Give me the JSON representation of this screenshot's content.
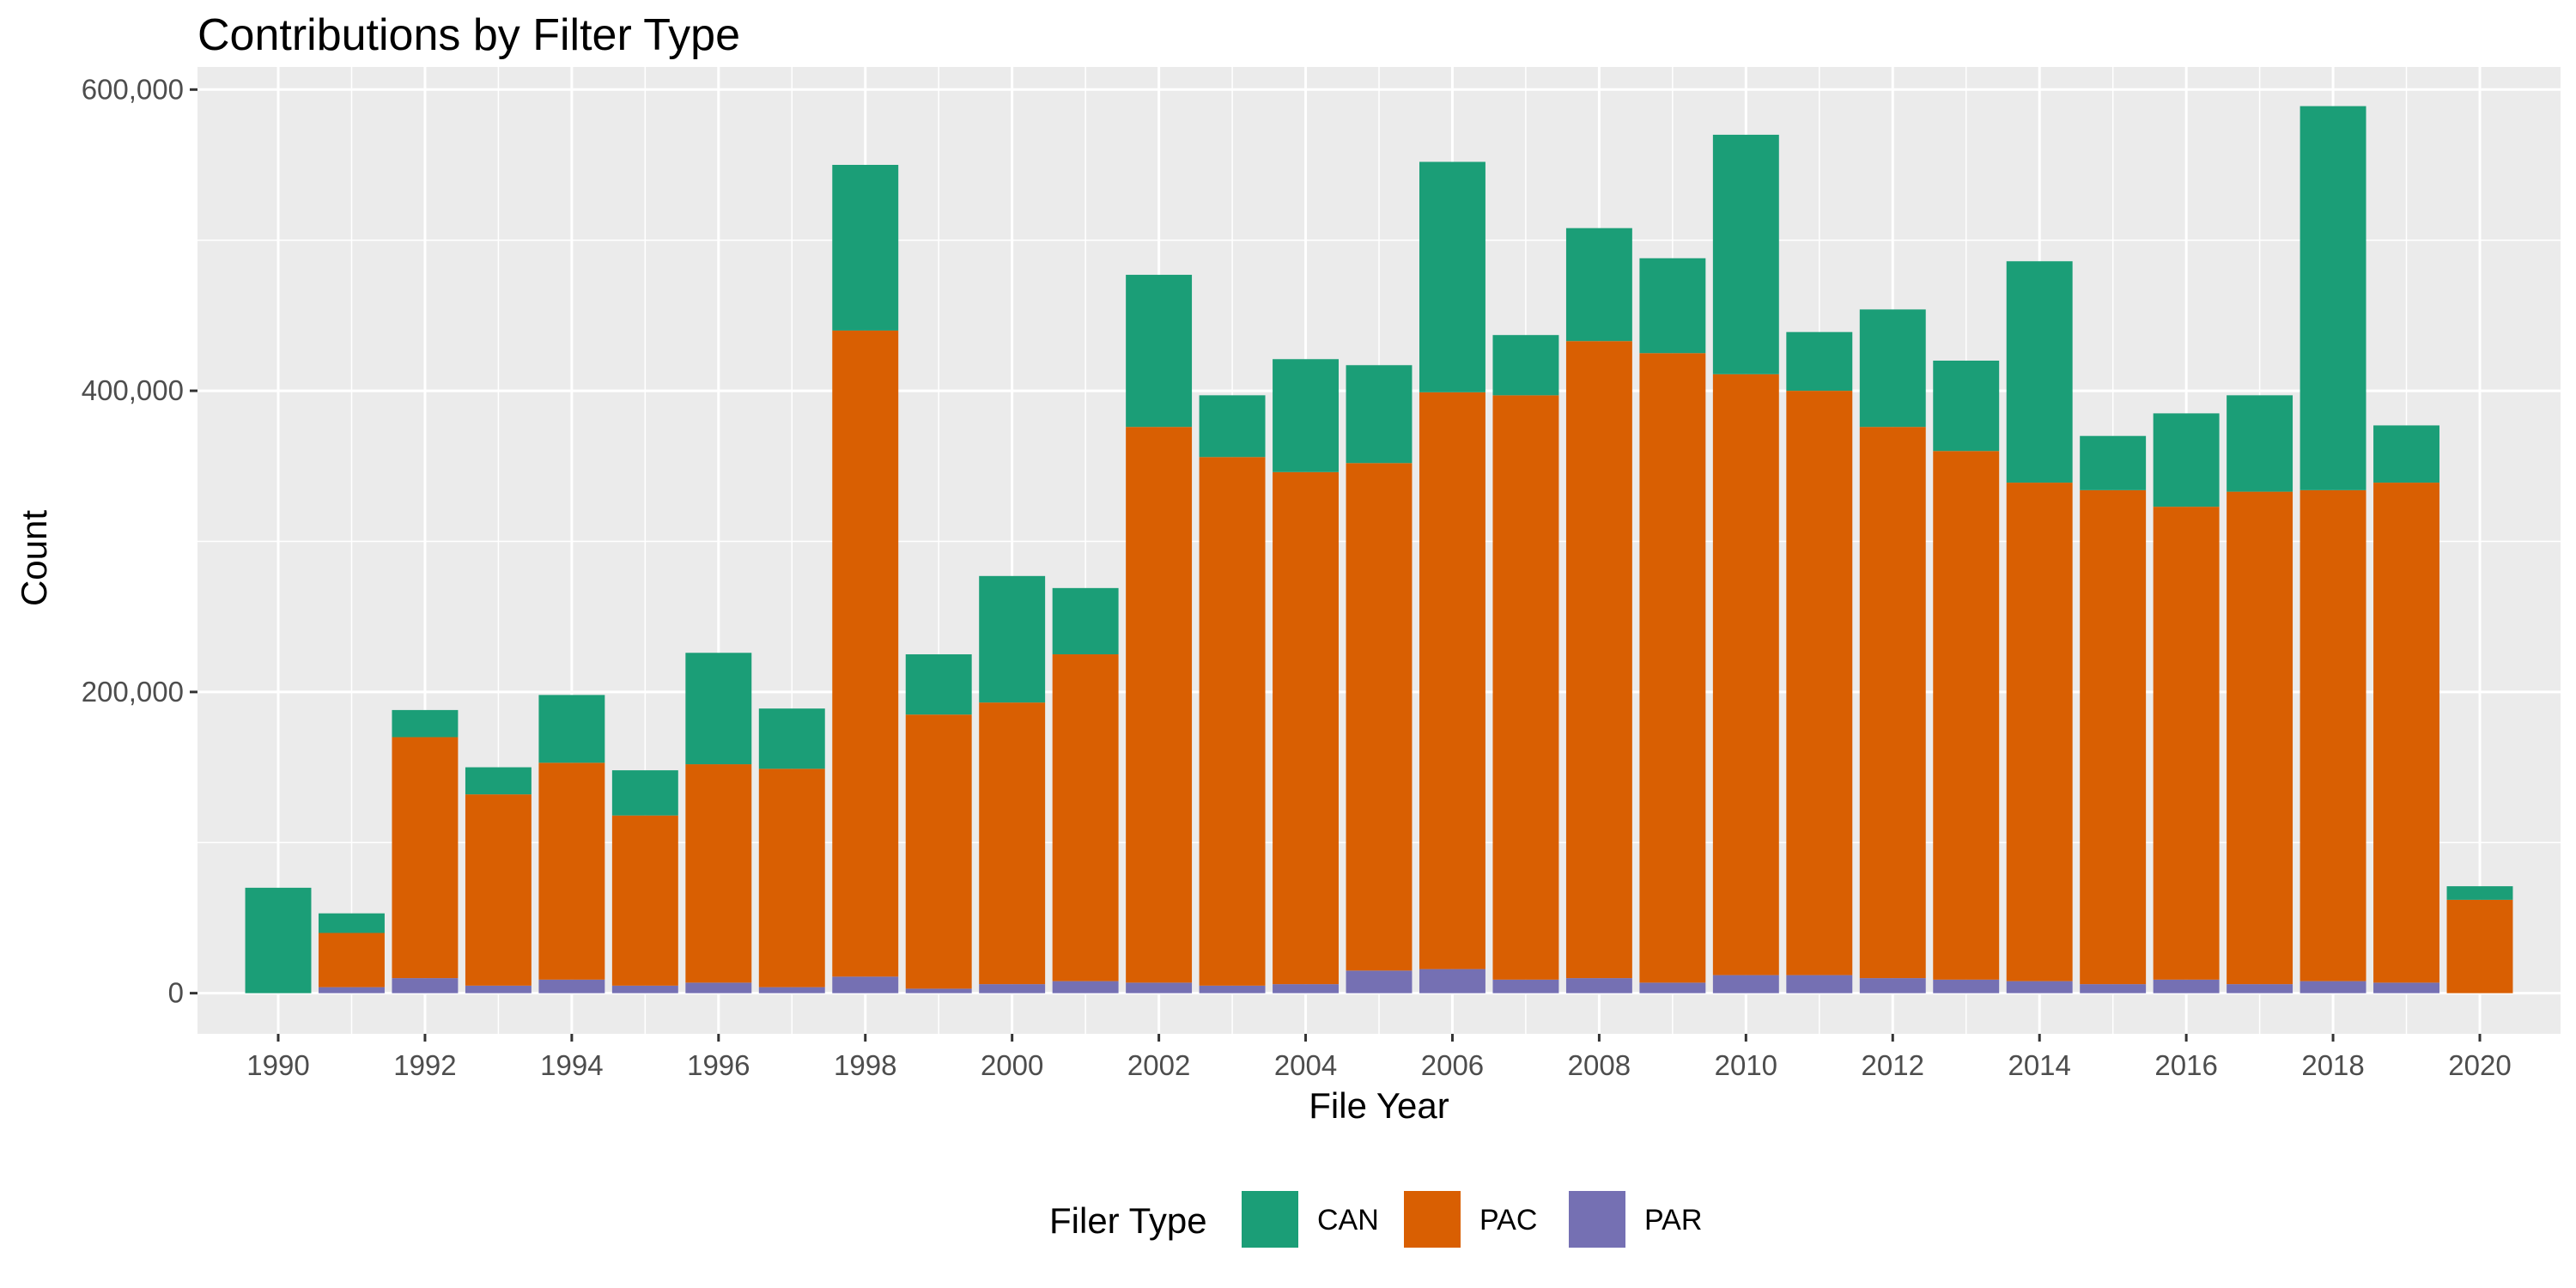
{
  "chart_data": {
    "type": "bar",
    "stacked": true,
    "title": "Contributions by Filter Type",
    "xlabel": "File Year",
    "ylabel": "Count",
    "x": [
      1990,
      1991,
      1992,
      1993,
      1994,
      1995,
      1996,
      1997,
      1998,
      1999,
      2000,
      2001,
      2002,
      2003,
      2004,
      2005,
      2006,
      2007,
      2008,
      2009,
      2010,
      2011,
      2012,
      2013,
      2014,
      2015,
      2016,
      2017,
      2018,
      2019,
      2020
    ],
    "x_tick_labels": [
      "1990",
      "1992",
      "1994",
      "1996",
      "1998",
      "2000",
      "2002",
      "2004",
      "2006",
      "2008",
      "2010",
      "2012",
      "2014",
      "2016",
      "2018",
      "2020"
    ],
    "y_tick_labels": [
      "0",
      "200,000",
      "400,000",
      "600,000"
    ],
    "y_ticks": [
      0,
      200000,
      400000,
      600000
    ],
    "ylim": [
      -27000,
      615000
    ],
    "xlim": [
      1988.9,
      2021.1
    ],
    "grid": true,
    "legend": {
      "title": "Filer Type",
      "position": "bottom"
    },
    "series": [
      {
        "name": "PAR",
        "color": "#7570B3",
        "values": [
          0,
          4000,
          10000,
          5000,
          9000,
          5000,
          7000,
          4000,
          11000,
          3000,
          6000,
          8000,
          7000,
          5000,
          6000,
          15000,
          16000,
          9000,
          10000,
          7000,
          12000,
          12000,
          10000,
          9000,
          8000,
          6000,
          9000,
          6000,
          8000,
          7000,
          0
        ]
      },
      {
        "name": "PAC",
        "color": "#D95F02",
        "values": [
          0,
          36000,
          160000,
          127000,
          144000,
          113000,
          145000,
          145000,
          429000,
          182000,
          187000,
          217000,
          369000,
          351000,
          340000,
          337000,
          383000,
          388000,
          423000,
          418000,
          399000,
          388000,
          366000,
          351000,
          331000,
          328000,
          314000,
          327000,
          326000,
          332000,
          62000
        ]
      },
      {
        "name": "CAN",
        "color": "#1B9E77",
        "values": [
          70000,
          13000,
          18000,
          18000,
          45000,
          30000,
          74000,
          40000,
          110000,
          40000,
          84000,
          44000,
          101000,
          41000,
          75000,
          65000,
          153000,
          40000,
          75000,
          63000,
          159000,
          39000,
          78000,
          60000,
          147000,
          36000,
          62000,
          64000,
          255000,
          38000,
          9000
        ]
      }
    ]
  }
}
